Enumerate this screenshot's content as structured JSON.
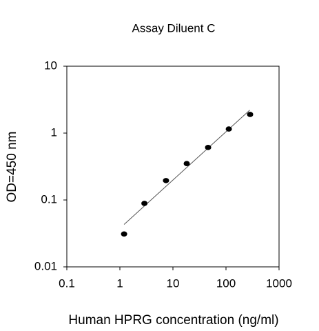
{
  "chart_data": {
    "type": "scatter",
    "title": "Assay Diluent C",
    "x_label": "Human HPRG concentration (ng/ml)",
    "y_label": "OD=450 nm",
    "log_x": true,
    "log_y": true,
    "series": [
      {
        "color": "#000000",
        "x": [
          1.2,
          2.9,
          7.4,
          18.2,
          46,
          113,
          285
        ],
        "values": [
          0.031,
          0.089,
          0.195,
          0.35,
          0.61,
          1.15,
          1.9
        ]
      }
    ],
    "fit_line": {
      "color": "#555555",
      "x": [
        1.2,
        280
      ],
      "values": [
        0.043,
        2.2
      ]
    },
    "xlim": [
      0.1,
      1000
    ],
    "xticks": [
      0.1,
      1,
      10,
      100,
      1000
    ],
    "ylim": [
      0.01,
      10
    ],
    "yticks": [
      0.01,
      0.1,
      1,
      10
    ]
  }
}
